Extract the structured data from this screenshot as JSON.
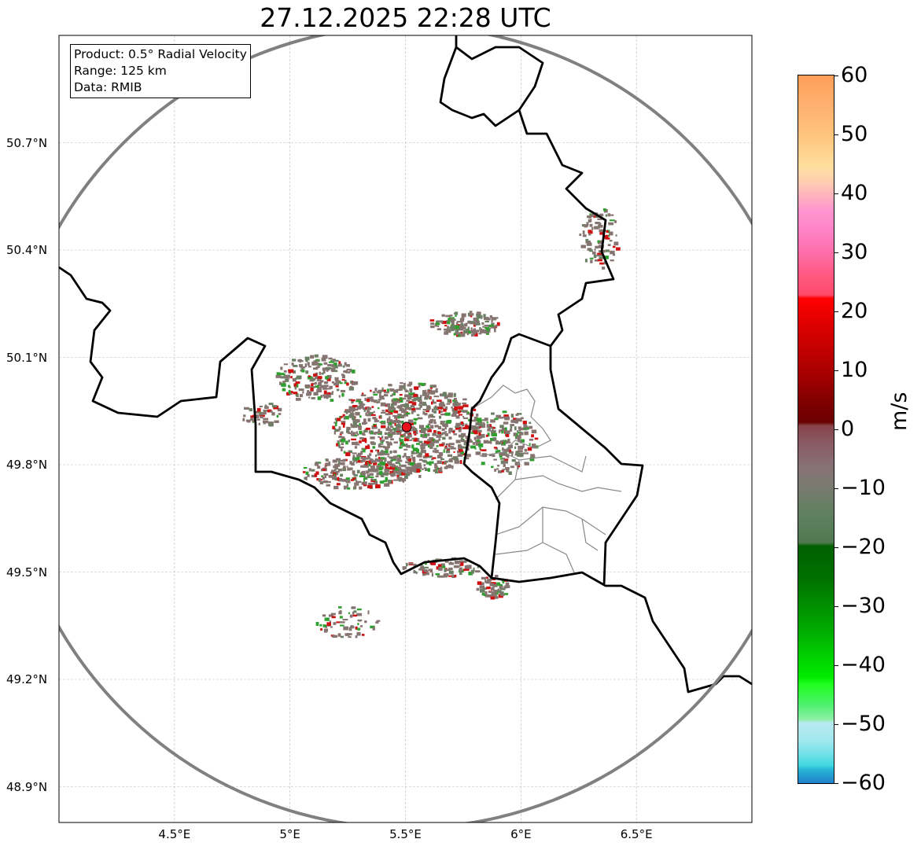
{
  "title": "27.12.2025 22:28 UTC",
  "info_box": {
    "product": "Product: 0.5° Radial Velocity",
    "range": "Range: 125 km",
    "data": "Data: RMIB"
  },
  "map": {
    "lon_range": [
      4.0,
      7.0
    ],
    "lat_range": [
      48.8,
      51.0
    ],
    "radar_site": {
      "lon": 5.505,
      "lat": 49.915
    },
    "range_km": 125,
    "x_ticks": [
      {
        "lon": 4.5,
        "label": "4.5°E"
      },
      {
        "lon": 5.0,
        "label": "5°E"
      },
      {
        "lon": 5.5,
        "label": "5.5°E"
      },
      {
        "lon": 6.0,
        "label": "6°E"
      },
      {
        "lon": 6.5,
        "label": "6.5°E"
      }
    ],
    "y_ticks": [
      {
        "lat": 50.7,
        "label": "50.7°N"
      },
      {
        "lat": 50.4,
        "label": "50.4°N"
      },
      {
        "lat": 50.1,
        "label": "50.1°N"
      },
      {
        "lat": 49.8,
        "label": "49.8°N"
      },
      {
        "lat": 49.5,
        "label": "49.5°N"
      },
      {
        "lat": 49.2,
        "label": "49.2°N"
      },
      {
        "lat": 48.9,
        "label": "48.9°N"
      }
    ],
    "colors": {
      "border": "#000000",
      "range_ring": "#808080",
      "echo_main": "#867470",
      "radar_marker": "#e8141c"
    }
  },
  "colorbar": {
    "unit": "m/s",
    "min": -60,
    "max": 60,
    "ticks": [
      "60",
      "50",
      "40",
      "30",
      "20",
      "10",
      "0",
      "−10",
      "−20",
      "−30",
      "−40",
      "−50",
      "−60"
    ]
  }
}
